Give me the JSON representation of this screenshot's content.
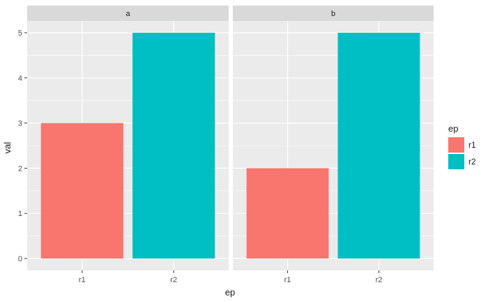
{
  "chart_data": {
    "type": "bar",
    "xlabel": "ep",
    "ylabel": "val",
    "ylim": [
      0,
      5
    ],
    "yticks": [
      0,
      1,
      2,
      3,
      4,
      5
    ],
    "categories": [
      "r1",
      "r2"
    ],
    "facets": [
      {
        "label": "a",
        "values": [
          3,
          5
        ]
      },
      {
        "label": "b",
        "values": [
          2,
          5
        ]
      }
    ],
    "legend": {
      "title": "ep",
      "position": "right",
      "items": [
        {
          "label": "r1",
          "color": "#F8766D"
        },
        {
          "label": "r2",
          "color": "#00BFC4"
        }
      ]
    },
    "grid": true,
    "colors": {
      "panel_bg": "#EBEBEB",
      "strip_bg": "#D9D9D9",
      "grid": "#FFFFFF",
      "text": "#1A1A1A",
      "tick_text": "#4D4D4D"
    }
  }
}
